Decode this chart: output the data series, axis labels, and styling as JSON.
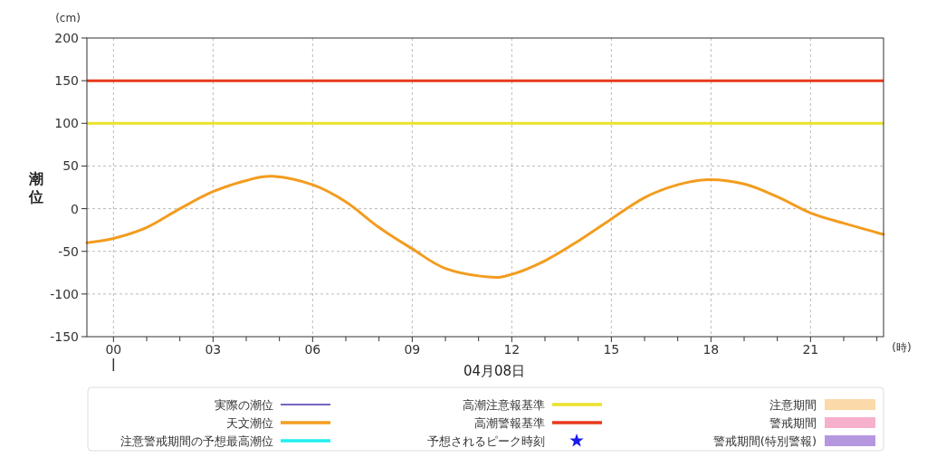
{
  "chart_data": {
    "type": "line",
    "ylabel": "潮位",
    "xlabel": "04月08日",
    "annotations": [
      "(cm)",
      "(時)"
    ],
    "x": [
      -0.8,
      0,
      1,
      2,
      3,
      4,
      4.8,
      6,
      7,
      8,
      9,
      10,
      11.3,
      12,
      13,
      14,
      15,
      16,
      17,
      17.9,
      19,
      20,
      21,
      22,
      23,
      23.2
    ],
    "series": [
      {
        "name": "実際の潮位",
        "color": "#4b2fa8",
        "values": [
          null,
          null,
          null,
          null,
          null,
          null,
          null,
          null,
          null,
          null,
          null,
          null,
          null,
          null,
          null,
          null,
          null,
          null,
          null,
          null,
          null,
          null,
          null,
          null,
          null,
          null
        ]
      },
      {
        "name": "天文潮位",
        "color": "#f39c1f",
        "values": [
          -40,
          -35,
          -22,
          0,
          20,
          33,
          38,
          28,
          8,
          -22,
          -47,
          -70,
          -80,
          -77,
          -61,
          -38,
          -12,
          13,
          28,
          34,
          29,
          14,
          -5,
          -17,
          -28,
          -30
        ]
      },
      {
        "name": "注意警戒期間の予想最高潮位",
        "color": "#22eef0",
        "values": [
          null,
          null,
          null,
          null,
          null,
          null,
          null,
          null,
          null,
          null,
          null,
          null,
          null,
          null,
          null,
          null,
          null,
          null,
          null,
          null,
          null,
          null,
          null,
          null,
          null,
          null
        ]
      },
      {
        "name": "予想されるピーク時刻",
        "type": "scatter",
        "marker": "star",
        "color": "#1a1aee",
        "values": [
          null,
          null,
          null,
          null,
          null,
          null,
          null,
          null,
          null,
          null,
          null,
          null,
          null,
          null,
          null,
          null,
          null,
          null,
          null,
          null,
          null,
          null,
          null,
          null,
          null,
          null
        ]
      },
      {
        "name": "注意期間",
        "type": "area",
        "color": "#fbd9a8",
        "values": [
          null,
          null,
          null,
          null,
          null,
          null,
          null,
          null,
          null,
          null,
          null,
          null,
          null,
          null,
          null,
          null,
          null,
          null,
          null,
          null,
          null,
          null,
          null,
          null,
          null,
          null
        ]
      },
      {
        "name": "警戒期間",
        "type": "area",
        "color": "#f7b0cc",
        "values": [
          null,
          null,
          null,
          null,
          null,
          null,
          null,
          null,
          null,
          null,
          null,
          null,
          null,
          null,
          null,
          null,
          null,
          null,
          null,
          null,
          null,
          null,
          null,
          null,
          null,
          null
        ]
      },
      {
        "name": "警戒期間(特別警報)",
        "type": "area",
        "color": "#b597e0",
        "values": [
          null,
          null,
          null,
          null,
          null,
          null,
          null,
          null,
          null,
          null,
          null,
          null,
          null,
          null,
          null,
          null,
          null,
          null,
          null,
          null,
          null,
          null,
          null,
          null,
          null,
          null
        ]
      }
    ],
    "ref_lines": [
      {
        "axis": "y",
        "value": 100,
        "label": "高潮注意報基準",
        "color": "#ebe22a"
      },
      {
        "axis": "y",
        "value": 150,
        "label": "高潮警報基準",
        "color": "#e8391c"
      }
    ],
    "xlim": [
      -0.8,
      23.2
    ],
    "xticks": [
      {
        "value": 0,
        "label": "00"
      },
      {
        "value": 1,
        "label": null
      },
      {
        "value": 2,
        "label": null
      },
      {
        "value": 3,
        "label": "03"
      },
      {
        "value": 4,
        "label": null
      },
      {
        "value": 5,
        "label": null
      },
      {
        "value": 6,
        "label": "06"
      },
      {
        "value": 7,
        "label": null
      },
      {
        "value": 8,
        "label": null
      },
      {
        "value": 9,
        "label": "09"
      },
      {
        "value": 10,
        "label": null
      },
      {
        "value": 11,
        "label": null
      },
      {
        "value": 12,
        "label": "12"
      },
      {
        "value": 13,
        "label": null
      },
      {
        "value": 14,
        "label": null
      },
      {
        "value": 15,
        "label": "15"
      },
      {
        "value": 16,
        "label": null
      },
      {
        "value": 17,
        "label": null
      },
      {
        "value": 18,
        "label": "18"
      },
      {
        "value": 19,
        "label": null
      },
      {
        "value": 20,
        "label": null
      },
      {
        "value": 21,
        "label": "21"
      },
      {
        "value": 22,
        "label": null
      },
      {
        "value": 23,
        "label": null
      }
    ],
    "ylim": [
      -150,
      200
    ],
    "yticks": [
      -150,
      -100,
      -50,
      0,
      50,
      100,
      150,
      200
    ],
    "grid": true,
    "legend": "bottom",
    "line_style": "solid"
  }
}
